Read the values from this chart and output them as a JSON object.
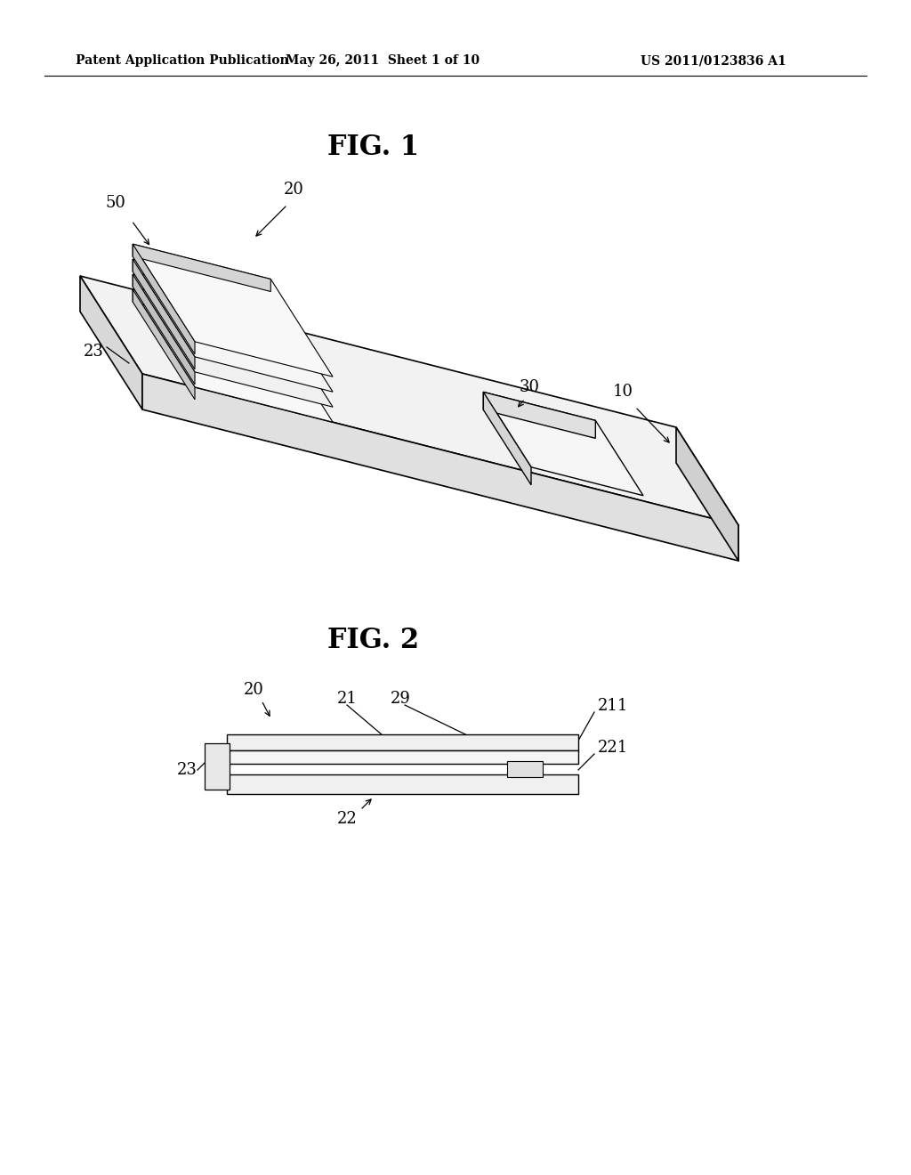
{
  "background_color": "#ffffff",
  "header_left": "Patent Application Publication",
  "header_center": "May 26, 2011  Sheet 1 of 10",
  "header_right": "US 2011/0123836 A1",
  "fig1_title": "FIG. 1",
  "fig2_title": "FIG. 2"
}
